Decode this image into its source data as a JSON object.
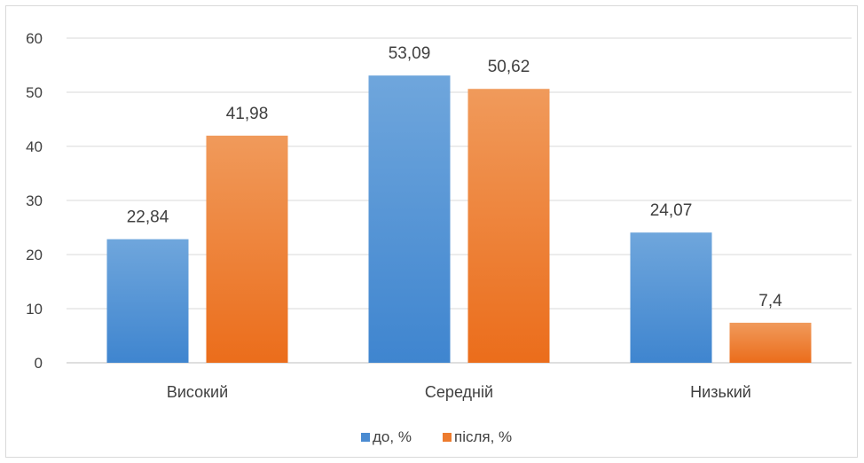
{
  "chart_data": {
    "type": "bar",
    "categories": [
      "Високий",
      "Середній",
      "Низький"
    ],
    "series": [
      {
        "name": "до, %",
        "values": [
          22.84,
          53.09,
          24.07
        ],
        "labels": [
          "22,84",
          "53,09",
          "24,07"
        ],
        "color": "#4a8bd1"
      },
      {
        "name": "після, %",
        "values": [
          41.98,
          50.62,
          7.4
        ],
        "labels": [
          "41,98",
          "50,62",
          "7,4"
        ],
        "color": "#ed7b2e"
      }
    ],
    "ylim": [
      0,
      60
    ],
    "yticks": [
      0,
      10,
      20,
      30,
      40,
      50,
      60
    ],
    "grid": true,
    "legend": "bottom",
    "title": "",
    "xlabel": "",
    "ylabel": ""
  }
}
